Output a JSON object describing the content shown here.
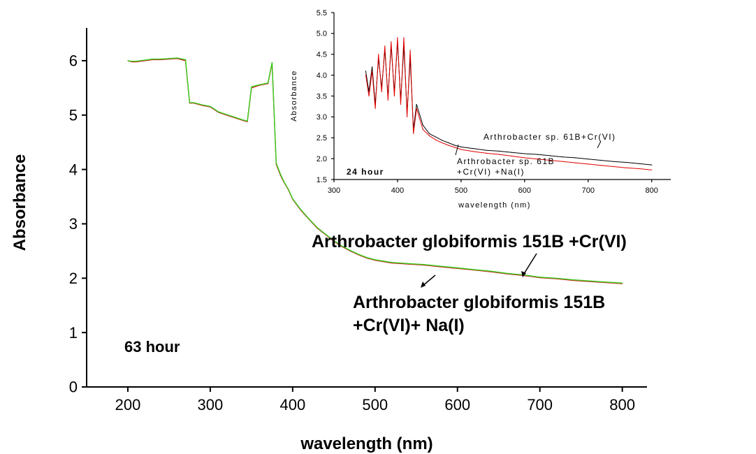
{
  "chart_data": [
    {
      "type": "line",
      "xlabel": "wavelength (nm)",
      "ylabel": "Absorbance",
      "xlim": [
        150,
        830
      ],
      "ylim": [
        0,
        6.5
      ],
      "xticks": [
        "200",
        "300",
        "400",
        "500",
        "600",
        "700",
        "800"
      ],
      "yticks": [
        "0",
        "1",
        "2",
        "3",
        "4",
        "5",
        "6"
      ],
      "time_label": "63 hour",
      "annotations": [
        {
          "label": "Arthrobacter globiformis 151B +Cr(VI)"
        },
        {
          "label_line1": "Arthrobacter globiformis 151B",
          "label_line2": "+Cr(VI)+ Na(I)"
        }
      ],
      "series": [
        {
          "color": "#d81b1b",
          "x": [
            200,
            205,
            210,
            220,
            230,
            240,
            250,
            260,
            270,
            275,
            280,
            290,
            300,
            310,
            320,
            330,
            340,
            345,
            350,
            360,
            370,
            375,
            380,
            385,
            390,
            395,
            400,
            410,
            420,
            430,
            440,
            450,
            460,
            470,
            480,
            490,
            500,
            520,
            540,
            560,
            580,
            600,
            620,
            640,
            660,
            680,
            700,
            720,
            740,
            760,
            780,
            800
          ],
          "y": [
            6.0,
            5.98,
            5.98,
            6.0,
            6.02,
            6.02,
            6.03,
            6.04,
            6.0,
            5.22,
            5.22,
            5.18,
            5.15,
            5.05,
            5.0,
            4.95,
            4.9,
            4.88,
            5.5,
            5.55,
            5.58,
            5.95,
            4.1,
            3.9,
            3.75,
            3.62,
            3.45,
            3.25,
            3.08,
            2.92,
            2.8,
            2.68,
            2.58,
            2.5,
            2.43,
            2.37,
            2.33,
            2.28,
            2.26,
            2.24,
            2.21,
            2.18,
            2.15,
            2.12,
            2.08,
            2.05,
            2.01,
            1.99,
            1.96,
            1.94,
            1.92,
            1.9
          ]
        },
        {
          "color": "#35d11f",
          "x": [
            200,
            205,
            210,
            220,
            230,
            240,
            250,
            260,
            270,
            275,
            280,
            290,
            300,
            310,
            320,
            330,
            340,
            345,
            350,
            360,
            370,
            375,
            380,
            385,
            390,
            395,
            400,
            410,
            420,
            430,
            440,
            450,
            460,
            470,
            480,
            490,
            500,
            520,
            540,
            560,
            580,
            600,
            620,
            640,
            660,
            680,
            700,
            720,
            740,
            760,
            780,
            800
          ],
          "y": [
            6.0,
            5.99,
            5.99,
            6.01,
            6.03,
            6.03,
            6.04,
            6.05,
            6.02,
            5.23,
            5.23,
            5.19,
            5.16,
            5.06,
            5.01,
            4.96,
            4.91,
            4.89,
            5.52,
            5.56,
            5.59,
            5.97,
            4.12,
            3.92,
            3.76,
            3.63,
            3.46,
            3.26,
            3.09,
            2.93,
            2.81,
            2.69,
            2.59,
            2.51,
            2.44,
            2.38,
            2.34,
            2.29,
            2.27,
            2.25,
            2.22,
            2.19,
            2.16,
            2.13,
            2.09,
            2.06,
            2.02,
            2.0,
            1.97,
            1.95,
            1.93,
            1.91
          ]
        }
      ]
    },
    {
      "type": "line",
      "xlabel": "wavelength (nm)",
      "ylabel": "Absorbance",
      "xlim": [
        300,
        830
      ],
      "ylim": [
        1.5,
        5.5
      ],
      "xticks": [
        "300",
        "400",
        "500",
        "600",
        "700",
        "800"
      ],
      "yticks": [
        "1.5",
        "2.0",
        "2.5",
        "3.0",
        "3.5",
        "4.0",
        "4.5",
        "5.0",
        "5.5"
      ],
      "time_label": "24 hour",
      "annotations": [
        {
          "label": "Arthrobacter sp. 61B+Cr(VI)"
        },
        {
          "label_line1": "Arthrobacter sp. 61B",
          "label_line2": "+Cr(VI) +Na(I)"
        }
      ],
      "series": [
        {
          "color": "#000000",
          "x": [
            350,
            355,
            360,
            365,
            370,
            375,
            380,
            385,
            390,
            395,
            400,
            405,
            410,
            415,
            420,
            425,
            430,
            440,
            450,
            460,
            470,
            480,
            490,
            500,
            520,
            540,
            560,
            580,
            600,
            620,
            640,
            660,
            680,
            700,
            720,
            740,
            760,
            780,
            800
          ],
          "y": [
            4.1,
            3.6,
            4.2,
            3.3,
            4.4,
            3.7,
            4.6,
            3.5,
            4.7,
            3.6,
            4.8,
            3.4,
            4.7,
            3.1,
            4.4,
            2.7,
            3.3,
            2.8,
            2.6,
            2.52,
            2.44,
            2.38,
            2.32,
            2.28,
            2.24,
            2.2,
            2.18,
            2.15,
            2.12,
            2.1,
            2.07,
            2.04,
            2.02,
            1.99,
            1.96,
            1.93,
            1.91,
            1.88,
            1.85
          ]
        },
        {
          "color": "#e00000",
          "x": [
            350,
            355,
            360,
            365,
            370,
            375,
            380,
            385,
            390,
            395,
            400,
            405,
            410,
            415,
            420,
            425,
            430,
            440,
            450,
            460,
            470,
            480,
            490,
            500,
            520,
            540,
            560,
            580,
            600,
            620,
            640,
            660,
            680,
            700,
            720,
            740,
            760,
            780,
            800
          ],
          "y": [
            4.0,
            3.5,
            4.1,
            3.2,
            4.5,
            3.6,
            4.7,
            3.4,
            4.8,
            3.5,
            4.9,
            3.3,
            4.9,
            3.0,
            4.6,
            2.6,
            3.2,
            2.7,
            2.55,
            2.45,
            2.38,
            2.32,
            2.27,
            2.22,
            2.17,
            2.13,
            2.1,
            2.06,
            2.02,
            1.99,
            1.96,
            1.93,
            1.9,
            1.87,
            1.84,
            1.81,
            1.78,
            1.76,
            1.73
          ]
        }
      ]
    }
  ]
}
